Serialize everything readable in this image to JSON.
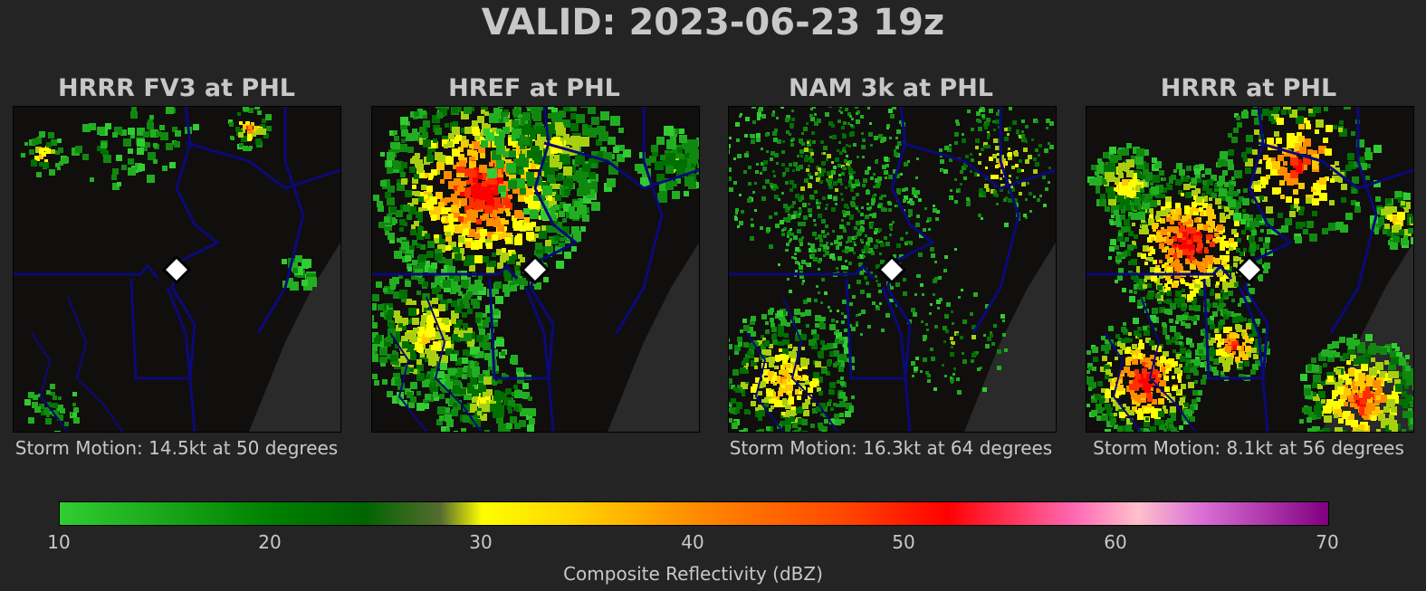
{
  "title": "VALID: 2023-06-23 19z",
  "panels": [
    {
      "title": "HRRR FV3 at PHL",
      "caption": "Storm Motion: 14.5kt at 50 degrees",
      "coverage": "sparse"
    },
    {
      "title": "HREF at PHL",
      "caption": "",
      "coverage": "heavy-northwest"
    },
    {
      "title": "NAM 3k at PHL",
      "caption": "Storm Motion: 16.3kt at 64 degrees",
      "coverage": "scattered"
    },
    {
      "title": "HRRR at PHL",
      "caption": "Storm Motion: 8.1kt at 56 degrees",
      "coverage": "intense-cells"
    }
  ],
  "colorbar": {
    "label": "Composite Reflectivity (dBZ)",
    "ticks": [
      "10",
      "20",
      "30",
      "40",
      "50",
      "60",
      "70"
    ],
    "min": 10,
    "max": 70,
    "colors": [
      "#32cd32",
      "#008000",
      "#006400",
      "#ffff00",
      "#ff8c00",
      "#ff0000",
      "#ffc0cb",
      "#800080"
    ]
  },
  "map_colors": {
    "land": "#110e0e",
    "water": "#2a2a2a",
    "borders": "#0a0a78",
    "marker": "#ffffff"
  }
}
